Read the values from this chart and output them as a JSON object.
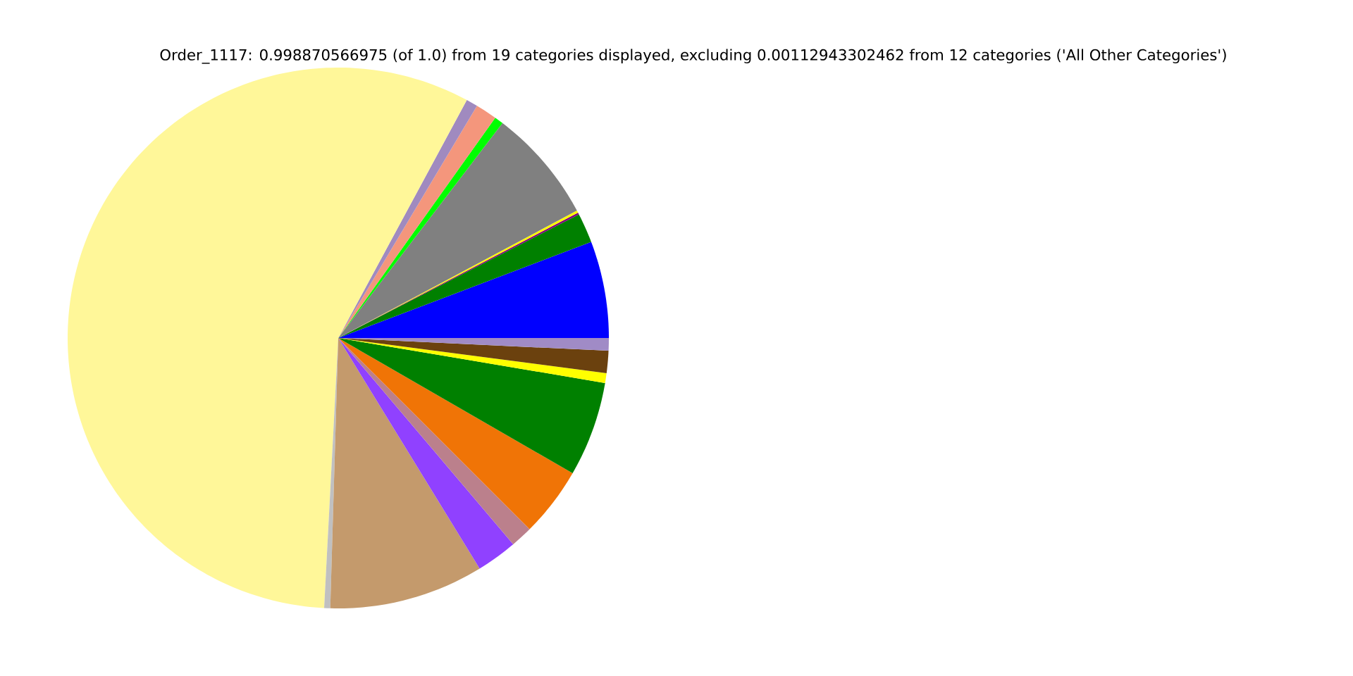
{
  "chart_data": {
    "type": "pie",
    "title": "Order_1117: 0.998870566975 (of 1.0) from 19 categories displayed, excluding 0.00112943302462 from 12 categories ('All Other Categories')",
    "categories": [
      null,
      null,
      null,
      null,
      null,
      null,
      null,
      null,
      null,
      null,
      null,
      null,
      null,
      null,
      null,
      null,
      null,
      null
    ],
    "values": [
      5.78,
      1.78,
      0.11,
      0.14,
      6.81,
      0.53,
      1.28,
      0.69,
      57.05,
      0.36,
      9.22,
      2.44,
      1.31,
      4.17,
      5.67,
      0.58,
      1.33,
      0.75
    ],
    "colors": [
      "#0000ff",
      "#008000",
      "#800080",
      "#ffff00",
      "#808080",
      "#00ff00",
      "#f4967c",
      "#a08abf",
      "#fff799",
      "#c0c0c0",
      "#c49a6c",
      "#9041ff",
      "#bb808c",
      "#f07406",
      "#008000",
      "#ffff00",
      "#6b410e",
      "#a08bc6"
    ]
  }
}
